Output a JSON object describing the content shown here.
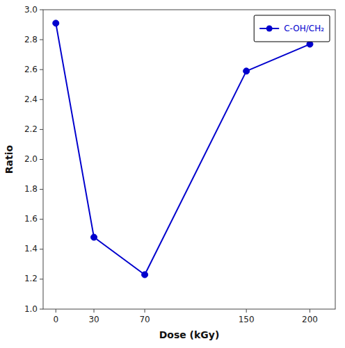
{
  "chart_data": {
    "type": "line",
    "xlabel": "Dose (kGy)",
    "ylabel": "Ratio",
    "x": [
      0,
      30,
      70,
      150,
      200
    ],
    "series": [
      {
        "name": "C-OH/CH₂",
        "color": "#0000CD",
        "marker": "circle",
        "line_style": "solid",
        "values": [
          2.91,
          1.48,
          1.23,
          2.59,
          2.77
        ]
      }
    ],
    "xlim": [
      -10,
      220
    ],
    "ylim": [
      1.0,
      3.0
    ],
    "xticks": [
      0,
      30,
      70,
      150,
      200
    ],
    "yticks": [
      {
        "value": 1,
        "label": "1.0"
      },
      1.2,
      1.4,
      1.6,
      1.8,
      {
        "value": 2,
        "label": "2.0"
      },
      2.2,
      2.4,
      2.6,
      2.8,
      {
        "value": 3,
        "label": "3.0"
      }
    ],
    "grid": false,
    "legend": "upper right"
  }
}
